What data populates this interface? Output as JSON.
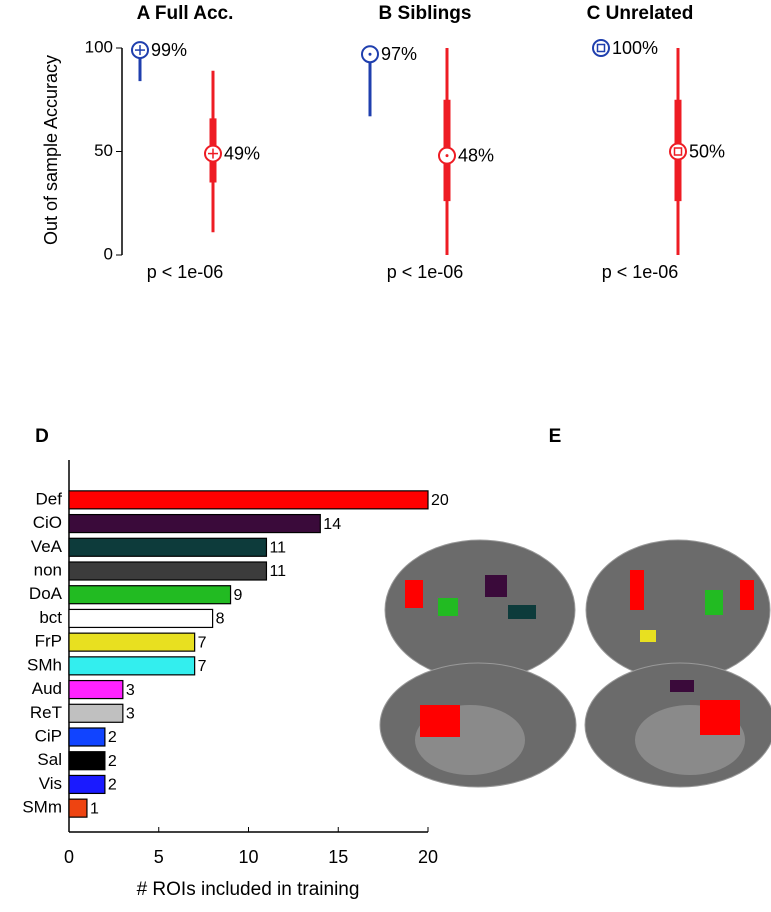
{
  "chart_data": [
    {
      "type": "interval",
      "title": "A Full Acc.",
      "ylabel": "Out of sample Accuracy",
      "ylim": [
        0,
        100
      ],
      "yticks": [
        0,
        50,
        100
      ],
      "annotation": "p < 1e-06",
      "series": [
        {
          "color": "#1f3fae",
          "marker": "plus",
          "values": [
            99
          ],
          "value_labels": [
            "99%"
          ],
          "lo": [
            84
          ],
          "hi": [
            99
          ]
        },
        {
          "color": "#ee1c24",
          "marker": "plus",
          "values": [
            49
          ],
          "value_labels": [
            "49%"
          ],
          "lo": [
            11
          ],
          "hi": [
            89
          ],
          "q1": [
            35
          ],
          "q3": [
            66
          ]
        }
      ]
    },
    {
      "type": "interval",
      "title": "B Siblings",
      "ylim": [
        0,
        100
      ],
      "annotation": "p < 1e-06",
      "series": [
        {
          "color": "#1f3fae",
          "marker": "dot",
          "values": [
            97
          ],
          "value_labels": [
            "97%"
          ],
          "lo": [
            67
          ],
          "hi": [
            97
          ]
        },
        {
          "color": "#ee1c24",
          "marker": "dot",
          "values": [
            48
          ],
          "value_labels": [
            "48%"
          ],
          "lo": [
            0
          ],
          "hi": [
            100
          ],
          "q1": [
            26
          ],
          "q3": [
            75
          ]
        }
      ]
    },
    {
      "type": "interval",
      "title": "C Unrelated",
      "ylim": [
        0,
        100
      ],
      "annotation": "p < 1e-06",
      "series": [
        {
          "color": "#1f3fae",
          "marker": "square",
          "values": [
            100
          ],
          "value_labels": [
            "100%"
          ]
        },
        {
          "color": "#ee1c24",
          "marker": "square",
          "values": [
            50
          ],
          "value_labels": [
            "50%"
          ],
          "lo": [
            0
          ],
          "hi": [
            100
          ],
          "q1": [
            26
          ],
          "q3": [
            75
          ]
        }
      ]
    },
    {
      "type": "barh",
      "title": "D",
      "xlabel": "# ROIs included in training",
      "xlim": [
        0,
        20
      ],
      "xticks": [
        0,
        5,
        10,
        15,
        20
      ],
      "categories": [
        "Def",
        "CiO",
        "VeA",
        "non",
        "DoA",
        "bct",
        "FrP",
        "SMh",
        "Aud",
        "ReT",
        "CiP",
        "Sal",
        "Vis",
        "SMm"
      ],
      "values": [
        20,
        14,
        11,
        11,
        9,
        8,
        7,
        7,
        3,
        3,
        2,
        2,
        2,
        1
      ],
      "colors": [
        "#ff0000",
        "#3a0a3a",
        "#0d3b3b",
        "#3c3c3c",
        "#22bb22",
        "#ffffff",
        "#e8e020",
        "#33eeee",
        "#ff22ff",
        "#c0c0c0",
        "#1144ff",
        "#000000",
        "#1a1aff",
        "#ee4411"
      ]
    },
    {
      "type": "image",
      "title": "E"
    }
  ]
}
